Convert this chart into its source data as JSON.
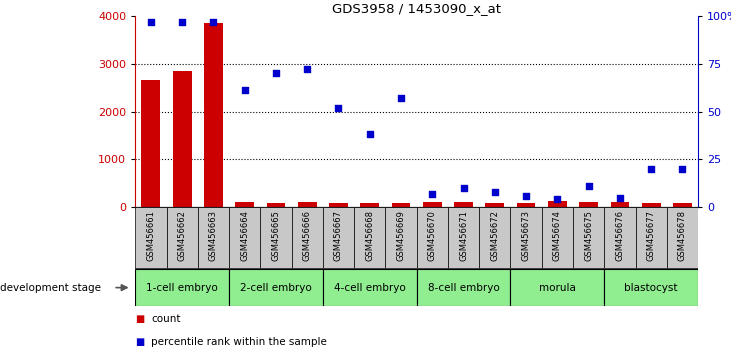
{
  "title": "GDS3958 / 1453090_x_at",
  "samples": [
    "GSM456661",
    "GSM456662",
    "GSM456663",
    "GSM456664",
    "GSM456665",
    "GSM456666",
    "GSM456667",
    "GSM456668",
    "GSM456669",
    "GSM456670",
    "GSM456671",
    "GSM456672",
    "GSM456673",
    "GSM456674",
    "GSM456675",
    "GSM456676",
    "GSM456677",
    "GSM456678"
  ],
  "counts": [
    2650,
    2850,
    3850,
    100,
    80,
    100,
    80,
    80,
    80,
    100,
    100,
    80,
    80,
    120,
    100,
    110,
    80,
    80
  ],
  "percentile": [
    97,
    97,
    97,
    61,
    70,
    72,
    52,
    38,
    57,
    7,
    10,
    8,
    6,
    4,
    11,
    5,
    20,
    20
  ],
  "stages": [
    {
      "label": "1-cell embryo",
      "start": 0,
      "end": 3,
      "color": "#90EE90"
    },
    {
      "label": "2-cell embryo",
      "start": 3,
      "end": 6,
      "color": "#90EE90"
    },
    {
      "label": "4-cell embryo",
      "start": 6,
      "end": 9,
      "color": "#90EE90"
    },
    {
      "label": "8-cell embryo",
      "start": 9,
      "end": 12,
      "color": "#90EE90"
    },
    {
      "label": "morula",
      "start": 12,
      "end": 15,
      "color": "#90EE90"
    },
    {
      "label": "blastocyst",
      "start": 15,
      "end": 18,
      "color": "#90EE90"
    }
  ],
  "bar_color": "#CC0000",
  "dot_color": "#0000CC",
  "left_ylim": [
    0,
    4000
  ],
  "right_ylim": [
    0,
    100
  ],
  "left_yticks": [
    0,
    1000,
    2000,
    3000,
    4000
  ],
  "right_yticks": [
    0,
    25,
    50,
    75,
    100
  ],
  "right_yticklabels": [
    "0",
    "25",
    "50",
    "75",
    "100%"
  ],
  "background_color": "#ffffff",
  "sample_bg_color": "#C8C8C8",
  "dev_stage_text": "development stage"
}
